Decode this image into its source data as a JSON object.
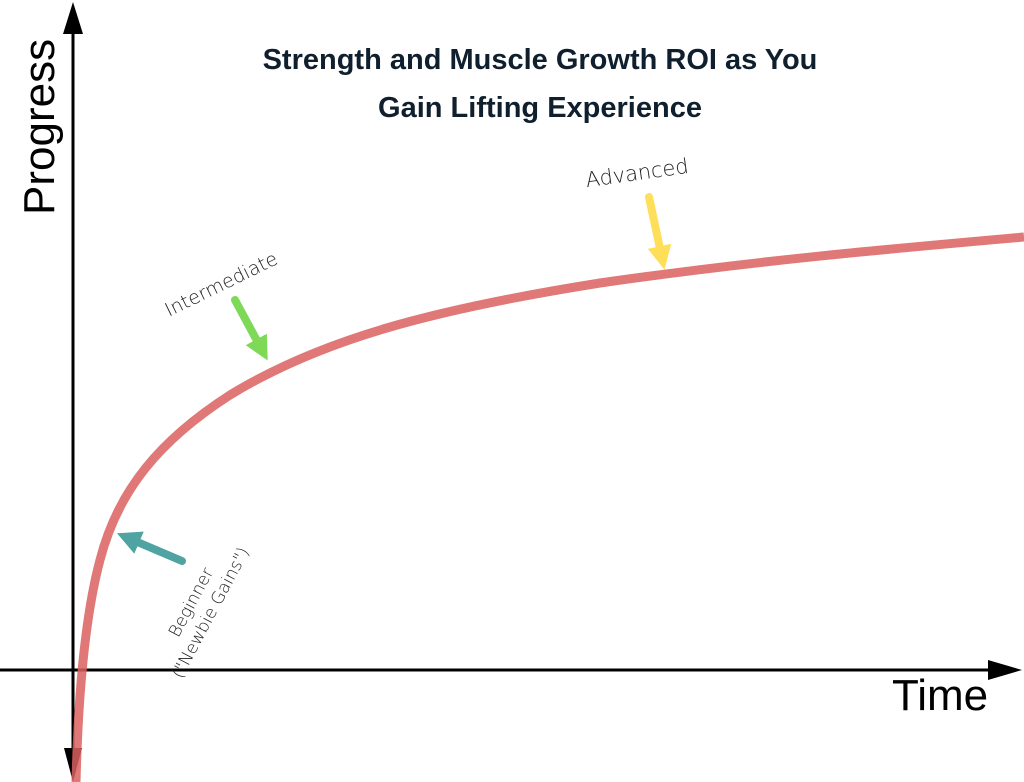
{
  "title": {
    "line1": "Strength and Muscle Growth ROI as You",
    "line2": "Gain Lifting Experience"
  },
  "axes": {
    "y_label": "Progress",
    "x_label": "Time"
  },
  "annotations": {
    "beginner": {
      "line1": "Beginner",
      "line2": "(\"Newbie Gains\")",
      "arrow_color": "#4fa3a0"
    },
    "intermediate": {
      "label": "Intermediate",
      "arrow_color": "#7ed957"
    },
    "advanced": {
      "label": "Advanced",
      "arrow_color": "#ffde59"
    }
  },
  "colors": {
    "curve": "#d9605e",
    "axes": "#000000",
    "title": "#0f1f2e"
  }
}
